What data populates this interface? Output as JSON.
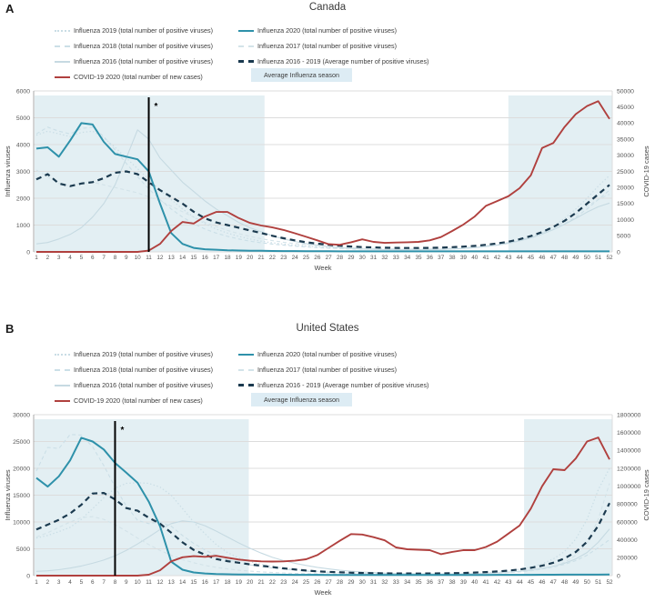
{
  "colors": {
    "flu2020": "#2e91aa",
    "covid": "#b0403e",
    "average": "#1b3a4f",
    "flu2016": "#c6dae2",
    "flu2017": "#d3e3e9",
    "flu2018": "#cbdfe7",
    "flu2019": "#c9dde5",
    "shade": "#e3eff3",
    "legend_box": "#ddecf4",
    "grid": "#dcdcdc",
    "axis_line": "#a8a8a8",
    "axis_text": "#555555",
    "marker": "#000000"
  },
  "panels": [
    {
      "letter": "A",
      "title": "Canada",
      "legend": {
        "col1": [
          {
            "label": "Influenza 2019 (total number of positive viruses)"
          },
          {
            "label": "Influenza 2018 (total number of positive viruses)"
          },
          {
            "label": "Influenza 2016 (total number of positive viruses)"
          },
          {
            "label": "COVID-19 2020 (total number of new cases)"
          }
        ],
        "col2": [
          {
            "label": "Influenza 2020 (total number of positive viruses)"
          },
          {
            "label": "Influenza 2017 (total number of positive viruses)"
          },
          {
            "label": "Influenza 2016 - 2019 (Average number of positive viruses)"
          },
          {
            "label": "Average Influenza season"
          }
        ]
      }
    },
    {
      "letter": "B",
      "title": "United States",
      "legend": {
        "col1": [
          {
            "label": "Influenza 2019 (total number of positive viruses)"
          },
          {
            "label": "Influenza 2018 (total number of positive viruses)"
          },
          {
            "label": "Influenza 2016 (total number of positive viruses)"
          },
          {
            "label": "COVID-19 2020 (total number of new cases)"
          }
        ],
        "col2": [
          {
            "label": "Influenza 2020 (total number of positive viruses)"
          },
          {
            "label": "Influenza 2017 (total number of positive viruses)"
          },
          {
            "label": "Influenza 2016 - 2019 (Average number of positive viruses)"
          },
          {
            "label": "Average Influenza season"
          }
        ]
      }
    }
  ],
  "chart_data": [
    {
      "type": "line",
      "title": "Canada",
      "x_axis": {
        "label": "Week",
        "min": 1,
        "max": 52
      },
      "left_axis": {
        "label": "Influenza viruses",
        "min": 0,
        "max": 6000,
        "step": 1000
      },
      "right_axis": {
        "label": "COVID-19 cases",
        "min": 0,
        "max": 50000,
        "step": 5000
      },
      "shaded_weeks": [
        [
          1,
          21.3
        ],
        [
          43,
          52.3
        ]
      ],
      "shade_label": "Average Influenza season",
      "marker": {
        "week": 11,
        "label": "*"
      },
      "series": [
        {
          "name": "Influenza 2016 (total number of positive viruses)",
          "axis": "left",
          "colorKey": "flu2016",
          "dash": "",
          "width": 1.1,
          "values": [
            300,
            350,
            480,
            650,
            900,
            1300,
            1800,
            2500,
            3500,
            4550,
            4200,
            3500,
            3050,
            2600,
            2250,
            1900,
            1600,
            1350,
            1100,
            900,
            750,
            600,
            480,
            390,
            310,
            250,
            200,
            160,
            130,
            110,
            95,
            85,
            80,
            80,
            80,
            85,
            95,
            110,
            130,
            160,
            200,
            250,
            320,
            410,
            520,
            660,
            830,
            1030,
            1250,
            1480,
            1680,
            1820
          ]
        },
        {
          "name": "Influenza 2017 (total number of positive viruses)",
          "axis": "left",
          "colorKey": "flu2017",
          "dash": "4,3",
          "width": 1.1,
          "values": [
            3050,
            2800,
            2550,
            2450,
            2550,
            2600,
            2500,
            2400,
            2300,
            2200,
            2050,
            1900,
            1700,
            1500,
            1300,
            1100,
            950,
            800,
            680,
            580,
            490,
            420,
            360,
            310,
            265,
            230,
            200,
            175,
            155,
            140,
            125,
            115,
            110,
            105,
            105,
            110,
            120,
            135,
            155,
            185,
            225,
            280,
            350,
            440,
            560,
            710,
            900,
            1130,
            1400,
            1700,
            1950,
            2150
          ]
        },
        {
          "name": "Influenza 2018 (total number of positive viruses)",
          "axis": "left",
          "colorKey": "flu2018",
          "dash": "4,3",
          "width": 1.1,
          "values": [
            4400,
            4650,
            4500,
            4400,
            4600,
            4650,
            4300,
            3800,
            3300,
            2800,
            2350,
            1950,
            1600,
            1300,
            1050,
            850,
            700,
            580,
            480,
            400,
            340,
            290,
            250,
            215,
            185,
            160,
            140,
            125,
            110,
            100,
            95,
            90,
            90,
            90,
            95,
            100,
            110,
            125,
            145,
            175,
            215,
            265,
            330,
            420,
            530,
            670,
            840,
            1050,
            1300,
            1600,
            1950,
            2300
          ]
        },
        {
          "name": "Influenza 2019 (total number of positive viruses)",
          "axis": "left",
          "colorKey": "flu2019",
          "dash": "1.4,2.4",
          "width": 1.2,
          "values": [
            4350,
            4500,
            4400,
            4300,
            4450,
            4500,
            4250,
            3900,
            3500,
            3100,
            2700,
            2300,
            1950,
            1600,
            1300,
            1050,
            850,
            700,
            580,
            480,
            400,
            340,
            290,
            250,
            215,
            185,
            160,
            140,
            125,
            110,
            100,
            95,
            90,
            90,
            90,
            95,
            100,
            110,
            130,
            160,
            200,
            250,
            320,
            420,
            550,
            720,
            950,
            1250,
            1600,
            2000,
            2450,
            2850
          ]
        },
        {
          "name": "Influenza 2016 - 2019 (Average number of positive viruses)",
          "axis": "left",
          "colorKey": "average",
          "dash": "6,4.5",
          "width": 2.2,
          "values": [
            2700,
            2900,
            2550,
            2450,
            2550,
            2600,
            2750,
            2950,
            3000,
            2900,
            2600,
            2300,
            2050,
            1800,
            1500,
            1250,
            1100,
            1000,
            900,
            800,
            700,
            600,
            510,
            430,
            360,
            310,
            265,
            230,
            200,
            180,
            165,
            155,
            150,
            145,
            145,
            150,
            160,
            175,
            195,
            225,
            265,
            315,
            380,
            470,
            590,
            740,
            930,
            1160,
            1450,
            1800,
            2150,
            2500
          ]
        },
        {
          "name": "Influenza 2020 (total number of positive viruses)",
          "axis": "left",
          "colorKey": "flu2020",
          "dash": "",
          "width": 2,
          "values": [
            3850,
            3900,
            3550,
            4150,
            4800,
            4750,
            4100,
            3650,
            3550,
            3450,
            3000,
            1800,
            700,
            300,
            150,
            100,
            80,
            60,
            50,
            45,
            40,
            35,
            30,
            30,
            25,
            25,
            25,
            20,
            20,
            20,
            20,
            20,
            20,
            20,
            20,
            20,
            20,
            20,
            20,
            20,
            20,
            20,
            20,
            20,
            20,
            20,
            20,
            20,
            20,
            20,
            20,
            20
          ]
        },
        {
          "name": "COVID-19 2020 (total number of new cases)",
          "axis": "right",
          "colorKey": "covid",
          "dash": "",
          "width": 1.9,
          "values": [
            0,
            0,
            0,
            0,
            0,
            0,
            0,
            0,
            0,
            0,
            400,
            2500,
            6500,
            9300,
            8800,
            11000,
            12400,
            12400,
            10500,
            9000,
            8200,
            7600,
            6800,
            5800,
            4700,
            3600,
            2400,
            2200,
            3000,
            3900,
            3100,
            2800,
            2900,
            3000,
            3100,
            3600,
            4600,
            6500,
            8500,
            11000,
            14300,
            15800,
            17300,
            19800,
            23800,
            32300,
            33800,
            38800,
            42800,
            45300,
            46800,
            41300
          ]
        }
      ]
    },
    {
      "type": "line",
      "title": "United States",
      "x_axis": {
        "label": "Week",
        "min": 1,
        "max": 52
      },
      "left_axis": {
        "label": "Influenza viruses",
        "min": 0,
        "max": 30000,
        "step": 5000
      },
      "right_axis": {
        "label": "COVID-19 cases",
        "min": 0,
        "max": 1800000,
        "step": 200000
      },
      "shaded_weeks": [
        [
          1,
          19.9
        ],
        [
          44.4,
          52.3
        ]
      ],
      "shade_label": "Average Influenza season",
      "marker": {
        "week": 8,
        "label": "*"
      },
      "series": [
        {
          "name": "Influenza 2016 (total number of positive viruses)",
          "axis": "left",
          "colorKey": "flu2016",
          "dash": "",
          "width": 1.1,
          "values": [
            800,
            900,
            1100,
            1400,
            1800,
            2300,
            2900,
            3700,
            4700,
            5900,
            7200,
            8600,
            9700,
            10200,
            10000,
            9300,
            8300,
            7200,
            6100,
            5100,
            4200,
            3400,
            2800,
            2300,
            1900,
            1550,
            1250,
            1000,
            820,
            680,
            570,
            480,
            420,
            370,
            340,
            320,
            310,
            310,
            330,
            370,
            430,
            520,
            650,
            820,
            1050,
            1350,
            1750,
            2300,
            3100,
            4300,
            6200,
            8700
          ]
        },
        {
          "name": "Influenza 2017 (total number of positive viruses)",
          "axis": "left",
          "colorKey": "flu2017",
          "dash": "4,3",
          "width": 1.1,
          "values": [
            7200,
            8000,
            9000,
            10000,
            10800,
            11000,
            10500,
            9500,
            8300,
            7000,
            5800,
            4700,
            3800,
            3000,
            2400,
            1900,
            1550,
            1250,
            1000,
            850,
            700,
            600,
            500,
            430,
            380,
            330,
            300,
            270,
            250,
            230,
            220,
            210,
            200,
            200,
            200,
            210,
            220,
            240,
            270,
            310,
            370,
            450,
            560,
            700,
            900,
            1200,
            1700,
            2500,
            3800,
            6000,
            10500,
            17200
          ]
        },
        {
          "name": "Influenza 2018 (total number of positive viruses)",
          "axis": "left",
          "colorKey": "flu2018",
          "dash": "4,3",
          "width": 1.1,
          "values": [
            19500,
            23900,
            23700,
            26300,
            26200,
            24000,
            20500,
            16500,
            13000,
            10300,
            9700,
            10000,
            9200,
            7500,
            6000,
            4800,
            3800,
            3000,
            2400,
            2000,
            1700,
            1400,
            1200,
            1000,
            850,
            720,
            620,
            540,
            470,
            420,
            380,
            340,
            310,
            290,
            280,
            275,
            280,
            295,
            320,
            360,
            420,
            500,
            610,
            760,
            960,
            1230,
            1600,
            2100,
            2800,
            3800,
            5200,
            6700
          ]
        },
        {
          "name": "Influenza 2019 (total number of positive viruses)",
          "axis": "left",
          "colorKey": "flu2019",
          "dash": "1.4,2.4",
          "width": 1.2,
          "values": [
            7000,
            7500,
            8200,
            9000,
            10500,
            12500,
            14500,
            16300,
            17200,
            17300,
            17200,
            16500,
            15000,
            12500,
            10000,
            7800,
            5800,
            4300,
            3300,
            2600,
            2100,
            1700,
            1400,
            1150,
            950,
            800,
            680,
            580,
            500,
            440,
            390,
            350,
            320,
            300,
            290,
            285,
            290,
            310,
            350,
            420,
            520,
            670,
            880,
            1180,
            1600,
            2200,
            3100,
            4500,
            6800,
            10500,
            16000,
            20000
          ]
        },
        {
          "name": "Influenza 2016 - 2019 (Average number of positive viruses)",
          "axis": "left",
          "colorKey": "average",
          "dash": "6,4.5",
          "width": 2.2,
          "values": [
            8600,
            9500,
            10400,
            11600,
            13200,
            15300,
            15400,
            14200,
            12600,
            12100,
            10800,
            9700,
            8000,
            6200,
            4800,
            3900,
            3100,
            2700,
            2400,
            2100,
            1850,
            1600,
            1350,
            1150,
            950,
            800,
            700,
            620,
            550,
            500,
            460,
            430,
            410,
            400,
            395,
            400,
            420,
            450,
            500,
            570,
            660,
            780,
            940,
            1150,
            1450,
            1850,
            2400,
            3200,
            4400,
            6300,
            9300,
            13500
          ]
        },
        {
          "name": "Influenza 2020 (total number of positive viruses)",
          "axis": "left",
          "colorKey": "flu2020",
          "dash": "",
          "width": 2,
          "values": [
            18200,
            16600,
            18500,
            21500,
            25700,
            25000,
            23500,
            21000,
            19200,
            17300,
            13800,
            9200,
            2600,
            1100,
            600,
            400,
            300,
            250,
            220,
            200,
            190,
            180,
            170,
            160,
            150,
            150,
            140,
            140,
            130,
            130,
            130,
            120,
            120,
            120,
            120,
            120,
            120,
            130,
            130,
            140,
            140,
            150,
            150,
            160,
            160,
            170,
            170,
            180,
            180,
            190,
            190,
            200
          ]
        },
        {
          "name": "COVID-19 2020 (total number of new cases)",
          "axis": "right",
          "colorKey": "covid",
          "dash": "",
          "width": 1.9,
          "values": [
            0,
            0,
            0,
            0,
            0,
            0,
            0,
            0,
            0,
            0,
            10000,
            60000,
            160000,
            205000,
            218000,
            210000,
            222000,
            200000,
            180000,
            167000,
            160000,
            158000,
            160000,
            167000,
            183000,
            230000,
            310000,
            390000,
            465000,
            460000,
            430000,
            395000,
            315000,
            295000,
            290000,
            285000,
            240000,
            265000,
            285000,
            285000,
            320000,
            380000,
            470000,
            560000,
            750000,
            1000000,
            1190000,
            1180000,
            1310000,
            1500000,
            1545000,
            1300000
          ]
        }
      ]
    }
  ]
}
